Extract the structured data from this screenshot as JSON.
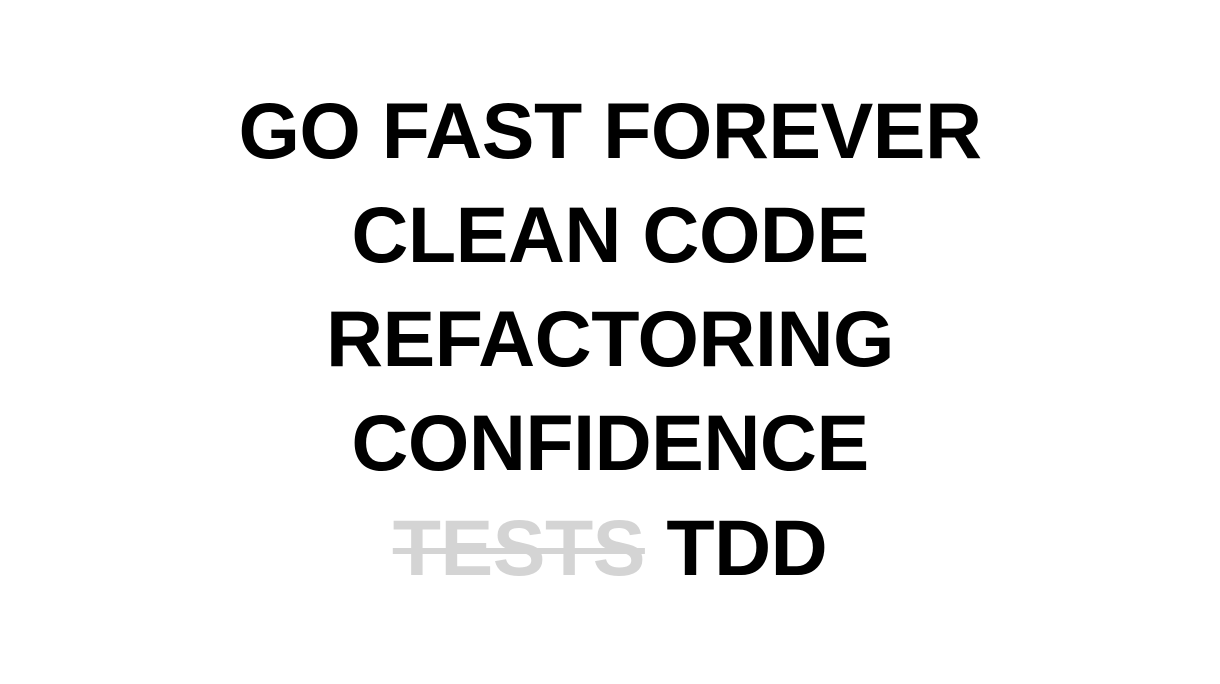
{
  "slide": {
    "lines": [
      "GO FAST FOREVER",
      "CLEAN CODE",
      "REFACTORING",
      "CONFIDENCE"
    ],
    "last_line": {
      "struck_word": "TESTS",
      "replacement_word": "TDD"
    }
  },
  "colors": {
    "text": "#000000",
    "struck_text": "#d4d4d4",
    "background": "#ffffff"
  }
}
